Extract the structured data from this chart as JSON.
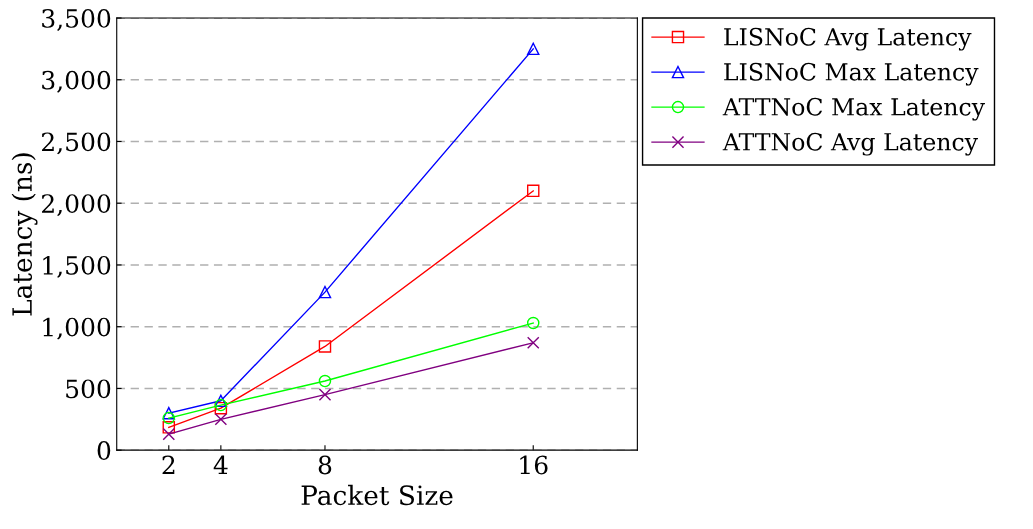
{
  "chart_data": {
    "type": "line",
    "xlabel": "Packet Size",
    "ylabel": "Latency (ns)",
    "x": [
      2,
      4,
      8,
      16
    ],
    "series": [
      {
        "name": "LISNoC Avg Latency",
        "color": "#ff0000",
        "marker": "square",
        "values": [
          185,
          340,
          840,
          2100
        ]
      },
      {
        "name": "LISNoC Max Latency",
        "color": "#0000ff",
        "marker": "triangle",
        "values": [
          300,
          400,
          1280,
          3250
        ]
      },
      {
        "name": "ATTNoC Max Latency",
        "color": "#00ff00",
        "marker": "circle",
        "values": [
          260,
          365,
          560,
          1030
        ]
      },
      {
        "name": "ATTNoC Avg Latency",
        "color": "#800080",
        "marker": "cross",
        "values": [
          130,
          250,
          450,
          870
        ]
      }
    ],
    "xlim": [
      0,
      20
    ],
    "xticks": [
      2,
      4,
      8,
      16
    ],
    "ylim": [
      0,
      3500
    ],
    "yticks": [
      {
        "value": 0,
        "label": "0"
      },
      {
        "value": 500,
        "label": "500"
      },
      {
        "value": 1000,
        "label": "1,000"
      },
      {
        "value": 1500,
        "label": "1,500"
      },
      {
        "value": 2000,
        "label": "2,000"
      },
      {
        "value": 2500,
        "label": "2,500"
      },
      {
        "value": 3000,
        "label": "3,000"
      },
      {
        "value": 3500,
        "label": "3,500"
      }
    ],
    "grid": "y",
    "legend": "top right",
    "line_style": "solid"
  }
}
